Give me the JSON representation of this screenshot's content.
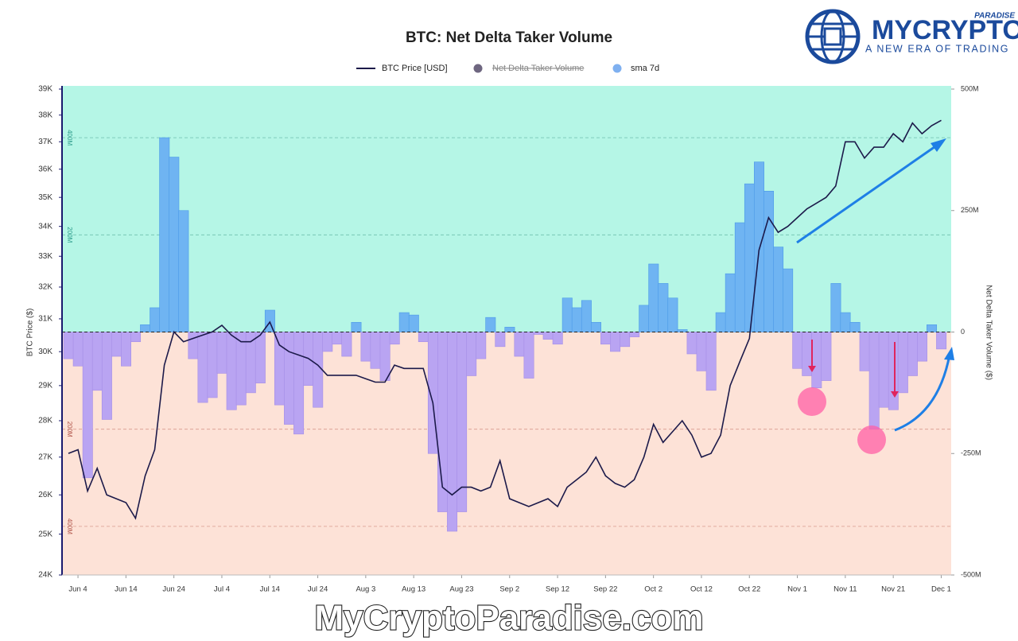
{
  "chart_data": {
    "type": "combo",
    "title": "BTC: Net Delta Taker Volume",
    "y_label": "BTC Price ($)",
    "y2_label": "Net Delta Taker Volume ($)",
    "watermark": "MyCryptoParadise.com",
    "logo": {
      "brand": "MYCRYPTO",
      "super": "PARADISE",
      "tagline": "A NEW ERA OF TRADING"
    },
    "ylog": true,
    "ylim": [
      24000,
      39000
    ],
    "yticks": [
      {
        "value": 24000,
        "label": "24K"
      },
      {
        "value": 25000,
        "label": "25K"
      },
      {
        "value": 26000,
        "label": "26K"
      },
      {
        "value": 27000,
        "label": "27K"
      },
      {
        "value": 28000,
        "label": "28K"
      },
      {
        "value": 29000,
        "label": "29K"
      },
      {
        "value": 30000,
        "label": "30K"
      },
      {
        "value": 31000,
        "label": "31K"
      },
      {
        "value": 32000,
        "label": "32K"
      },
      {
        "value": 33000,
        "label": "33K"
      },
      {
        "value": 34000,
        "label": "34K"
      },
      {
        "value": 35000,
        "label": "35K"
      },
      {
        "value": 36000,
        "label": "36K"
      },
      {
        "value": 37000,
        "label": "37K"
      },
      {
        "value": 38000,
        "label": "38K"
      },
      {
        "value": 39000,
        "label": "39K"
      }
    ],
    "y2lim": [
      -500000000,
      500000000
    ],
    "y2ticks": [
      {
        "value": -500000000,
        "label": "-500M"
      },
      {
        "value": -250000000,
        "label": "-250M"
      },
      0,
      {
        "value": 250000000,
        "label": "250M"
      },
      {
        "value": 500000000,
        "label": "500M"
      }
    ],
    "y2grid_ticks": [
      {
        "value": 400000000,
        "label": "400M"
      },
      {
        "value": 200000000,
        "label": "200M"
      },
      {
        "value": -200000000,
        "label": "200M"
      },
      {
        "value": -400000000,
        "label": "400M"
      }
    ],
    "x": [
      null,
      "Jun 4",
      null,
      null,
      null,
      null,
      "Jun 14",
      null,
      null,
      null,
      null,
      "Jun 24",
      null,
      null,
      null,
      null,
      "Jul 4",
      null,
      null,
      null,
      null,
      "Jul 14",
      null,
      null,
      null,
      null,
      "Jul 24",
      null,
      null,
      null,
      null,
      "Aug 3",
      null,
      null,
      null,
      null,
      "Aug 13",
      null,
      null,
      null,
      null,
      "Aug 23",
      null,
      null,
      null,
      null,
      "Sep 2",
      null,
      null,
      null,
      null,
      "Sep 12",
      null,
      null,
      null,
      null,
      "Sep 22",
      null,
      null,
      null,
      null,
      "Oct 2",
      null,
      null,
      null,
      null,
      "Oct 12",
      null,
      null,
      null,
      null,
      "Oct 22",
      null,
      null,
      null,
      null,
      "Nov 1",
      null,
      null,
      null,
      null,
      "Nov 11",
      null,
      null,
      null,
      null,
      "Nov 21",
      null,
      null,
      null,
      null,
      "Dec 1"
    ],
    "series": [
      {
        "name": "BTC Price [USD]",
        "type": "line",
        "color": "#1c1a4a",
        "values": [
          27100,
          27200,
          26100,
          26700,
          26000,
          25900,
          25800,
          25400,
          26500,
          27200,
          29600,
          30600,
          30300,
          30400,
          30500,
          30600,
          30800,
          30500,
          30300,
          30300,
          30500,
          30900,
          30200,
          30000,
          29900,
          29800,
          29600,
          29300,
          29300,
          29300,
          29300,
          29200,
          29100,
          29100,
          29600,
          29500,
          29500,
          29500,
          28500,
          26200,
          26000,
          26200,
          26200,
          26100,
          26200,
          26900,
          25900,
          25800,
          25700,
          25800,
          25900,
          25700,
          26200,
          26400,
          26600,
          27000,
          26500,
          26300,
          26200,
          26400,
          27000,
          27900,
          27400,
          27700,
          28000,
          27600,
          27000,
          27100,
          27600,
          29000,
          29700,
          30400,
          33200,
          34300,
          33800,
          34000,
          34300,
          34600,
          34800,
          35000,
          35400,
          37000,
          37000,
          36400,
          36800,
          36800,
          37300,
          37000,
          37700,
          37300,
          37600,
          37800
        ]
      },
      {
        "name": "Net Delta Taker Volume",
        "type": "hidden",
        "color": "#6e6680"
      },
      {
        "name": "sma 7d",
        "type": "bar",
        "axis": "y2",
        "color": "#6fb4f2",
        "negative_color": "#b9a4f2",
        "values": [
          -55000000,
          -70000000,
          -300000000,
          -120000000,
          -180000000,
          -50000000,
          -70000000,
          -20000000,
          15000000,
          50000000,
          400000000,
          360000000,
          250000000,
          -55000000,
          -145000000,
          -135000000,
          -85000000,
          -160000000,
          -150000000,
          -125000000,
          -105000000,
          45000000,
          -150000000,
          -190000000,
          -210000000,
          -110000000,
          -155000000,
          -40000000,
          -25000000,
          -50000000,
          20000000,
          -60000000,
          -75000000,
          -100000000,
          -25000000,
          40000000,
          35000000,
          -20000000,
          -250000000,
          -370000000,
          -410000000,
          -370000000,
          -90000000,
          -55000000,
          30000000,
          -30000000,
          10000000,
          -50000000,
          -95000000,
          -5000000,
          -15000000,
          -25000000,
          70000000,
          50000000,
          65000000,
          20000000,
          -25000000,
          -40000000,
          -30000000,
          -10000000,
          55000000,
          140000000,
          100000000,
          70000000,
          5000000,
          -45000000,
          -80000000,
          -120000000,
          40000000,
          120000000,
          225000000,
          305000000,
          350000000,
          290000000,
          175000000,
          130000000,
          -75000000,
          -90000000,
          -115000000,
          -100000000,
          100000000,
          40000000,
          20000000,
          -80000000,
          -200000000,
          -155000000,
          -160000000,
          -125000000,
          -90000000,
          -60000000,
          15000000,
          -35000000
        ]
      }
    ],
    "legend": "top",
    "grid": true
  }
}
